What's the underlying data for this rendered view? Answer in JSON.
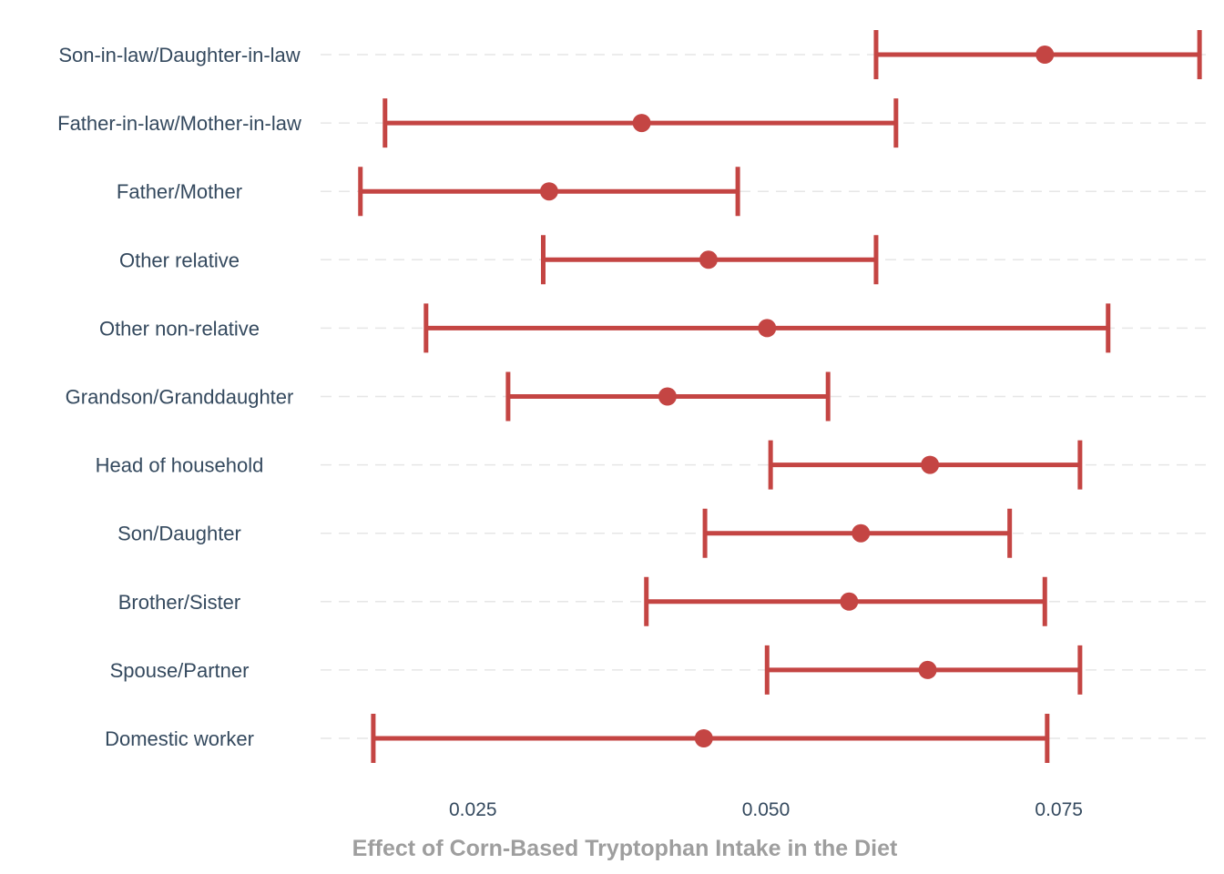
{
  "chart_data": {
    "type": "errorbar",
    "title": "",
    "xlabel": "Effect of Corn-Based Tryptophan Intake in the Diet",
    "ylabel": "",
    "xlim": [
      0.012,
      0.088
    ],
    "xticks": [
      0.025,
      0.05,
      0.075
    ],
    "xtick_labels": [
      "0.025",
      "0.050",
      "0.075"
    ],
    "grid": "horizontal dashed",
    "color": "#c44543",
    "categories": [
      "Son-in-law/Daughter-in-law",
      "Father-in-law/Mother-in-law",
      "Father/Mother",
      "Other relative",
      "Other non-relative",
      "Grandson/Granddaughter",
      "Head of household",
      "Son/Daughter",
      "Brother/Sister",
      "Spouse/Partner",
      "Domestic worker"
    ],
    "estimates": [
      0.0738,
      0.0394,
      0.0315,
      0.0451,
      0.0501,
      0.0416,
      0.064,
      0.0581,
      0.0571,
      0.0638,
      0.0447
    ],
    "lower": [
      0.0594,
      0.0175,
      0.0154,
      0.031,
      0.021,
      0.028,
      0.0504,
      0.0448,
      0.0398,
      0.0501,
      0.0165
    ],
    "upper": [
      0.087,
      0.0611,
      0.0476,
      0.0594,
      0.0792,
      0.0553,
      0.0768,
      0.0708,
      0.0738,
      0.0768,
      0.074
    ]
  }
}
